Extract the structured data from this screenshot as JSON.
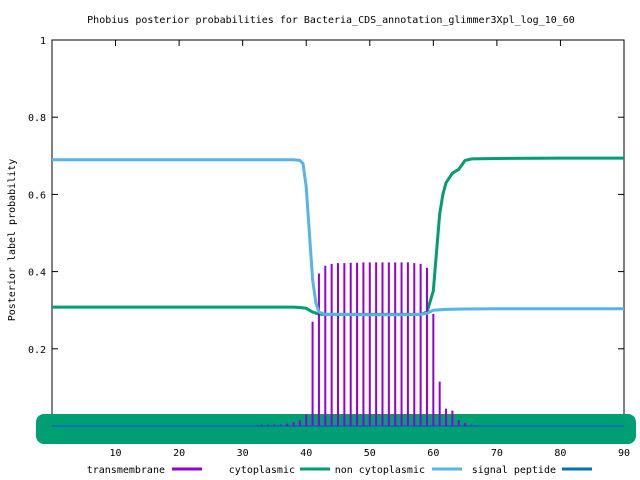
{
  "chart_data": {
    "type": "line",
    "title": "Phobius posterior probabilities for Bacteria_CDS_annotation_glimmer3Xpl_log_10_60",
    "xlabel": "",
    "ylabel": "Posterior label probability",
    "xlim": [
      0,
      90
    ],
    "ylim": [
      0,
      1
    ],
    "xticks": [
      10,
      20,
      30,
      40,
      50,
      60,
      70,
      80,
      90
    ],
    "yticks": [
      0.2,
      0.4,
      0.6,
      0.8,
      1
    ],
    "ytick_labels": [
      "0.2",
      "0.4",
      "0.6",
      "0.8",
      "1"
    ],
    "legend_position": "bottom",
    "grid": false,
    "series": [
      {
        "name": "transmembrane",
        "style": "impulses",
        "color": "#9400d3",
        "x": [
          33,
          34,
          35,
          36,
          37,
          38,
          39,
          40,
          41,
          42,
          43,
          44,
          45,
          46,
          47,
          48,
          49,
          50,
          51,
          52,
          53,
          54,
          55,
          56,
          57,
          58,
          59,
          60,
          61,
          62,
          63,
          64,
          65,
          66
        ],
        "values": [
          0.001,
          0.002,
          0.003,
          0.004,
          0.006,
          0.01,
          0.015,
          0.03,
          0.27,
          0.395,
          0.415,
          0.42,
          0.422,
          0.422,
          0.423,
          0.423,
          0.424,
          0.424,
          0.424,
          0.424,
          0.424,
          0.424,
          0.424,
          0.424,
          0.422,
          0.42,
          0.41,
          0.29,
          0.115,
          0.045,
          0.04,
          0.015,
          0.008,
          0.004
        ]
      },
      {
        "name": "cytoplasmic",
        "style": "line",
        "color": "#009e73",
        "x": [
          0,
          10,
          20,
          30,
          35,
          38,
          39,
          40,
          41,
          42,
          43,
          50,
          58,
          59,
          60,
          60.5,
          61,
          61.5,
          62,
          63,
          64,
          65,
          66,
          70,
          80,
          90
        ],
        "values": [
          0.308,
          0.308,
          0.308,
          0.308,
          0.308,
          0.308,
          0.307,
          0.305,
          0.295,
          0.29,
          0.289,
          0.289,
          0.289,
          0.295,
          0.35,
          0.45,
          0.55,
          0.6,
          0.63,
          0.655,
          0.665,
          0.688,
          0.692,
          0.693,
          0.694,
          0.694
        ]
      },
      {
        "name": "non cytoplasmic",
        "style": "line",
        "color": "#56b4e9",
        "x": [
          0,
          10,
          20,
          30,
          35,
          38,
          39,
          39.5,
          40,
          40.5,
          41,
          41.5,
          42,
          43,
          45,
          50,
          55,
          58,
          59,
          60,
          62,
          65,
          70,
          80,
          90
        ],
        "values": [
          0.69,
          0.69,
          0.69,
          0.69,
          0.69,
          0.69,
          0.688,
          0.68,
          0.62,
          0.5,
          0.38,
          0.32,
          0.295,
          0.289,
          0.289,
          0.288,
          0.288,
          0.289,
          0.292,
          0.3,
          0.302,
          0.303,
          0.304,
          0.304,
          0.304
        ]
      },
      {
        "name": "signal peptide",
        "style": "line",
        "color": "#0072b2",
        "x": [
          0,
          90
        ],
        "values": [
          0,
          0
        ]
      }
    ]
  }
}
